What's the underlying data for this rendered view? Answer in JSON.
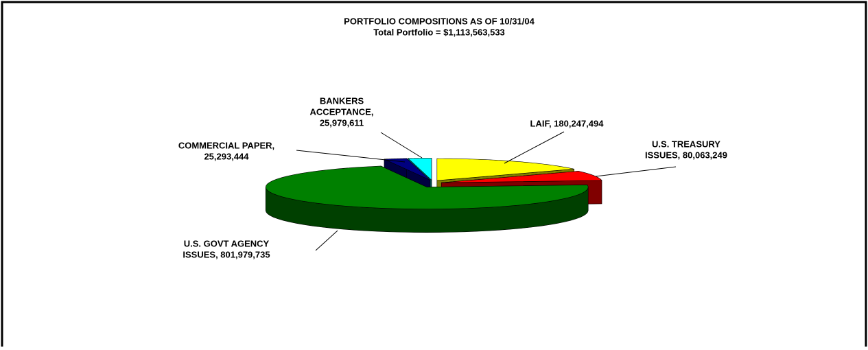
{
  "chart_data": {
    "type": "pie3d",
    "title": "PORTFOLIO COMPOSITIONS AS OF 10/31/04",
    "subtitle": "Total Portfolio = $1,113,563,533",
    "values": [
      180247494,
      80063249,
      801979735,
      25293444,
      25979611
    ],
    "value_labels": [
      [
        "LAIF, 180,247,494"
      ],
      [
        "U.S. TREASURY",
        "ISSUES, 80,063,249"
      ],
      [
        "U.S. GOVT AGENCY",
        "ISSUES, 801,979,735"
      ],
      [
        "COMMERCIAL PAPER,",
        "25,293,444"
      ],
      [
        "BANKERS",
        "ACCEPTANCE,",
        "25,979,611"
      ]
    ],
    "colors": [
      "#ffff00",
      "#ff0000",
      "#008000",
      "#000080",
      "#00ffff"
    ]
  }
}
